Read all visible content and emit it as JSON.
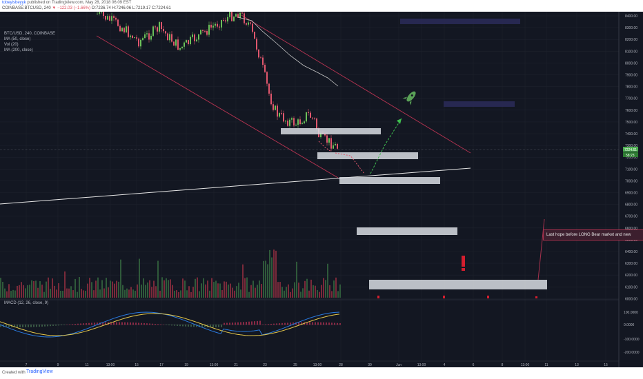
{
  "header": {
    "author": "tobeyisbeyyk",
    "publish_text": " published on TradingView.com, May 28, 2018 06:09 EST"
  },
  "symbol_line": {
    "prefix": "COINBASE:BTCUSD, 240",
    "change": " ▼ −122.03 (−1.66%) ",
    "ohlc": "O:7236.74 H:7246.06 L:7219.17 C:7224.61"
  },
  "legends": {
    "symbol": "BTC/USD, 240, COINBASE",
    "ma50": "MA (50, close)",
    "vol": "Vol (20)",
    "ma200": "MA (200, close)",
    "macd": "MACD (12, 26, close, 9)"
  },
  "price_axis": {
    "ticks": [
      "8400.00",
      "8300.00",
      "8200.00",
      "8100.00",
      "8000.00",
      "7900.00",
      "7800.00",
      "7700.00",
      "7600.00",
      "7500.00",
      "7400.00",
      "7300.00",
      "7200.00",
      "7100.00",
      "7000.00",
      "6900.00",
      "6800.00",
      "6700.00",
      "6600.00",
      "6500.00",
      "6400.00",
      "6300.00",
      "6200.00",
      "6100.00",
      "6000.00"
    ],
    "current_price": "7224.61",
    "current_tag2": "58:23"
  },
  "macd_axis": {
    "ticks": [
      "100.0000",
      "0.0000",
      "-100.0000",
      "-200.0000"
    ]
  },
  "time_axis": {
    "labels": [
      "7",
      "9",
      "11",
      "13:00",
      "15",
      "17",
      "19",
      "13:00",
      "21",
      "23",
      "25",
      "13:00",
      "28",
      "30",
      "Jun",
      "13:00",
      "4",
      "6",
      "8",
      "13:00",
      "11",
      "13",
      "15"
    ]
  },
  "annotation": {
    "last_hope": "Last hope before LONG Bear market and new"
  },
  "footer": {
    "created_with": "Created with",
    "brand": "TradingView"
  },
  "colors": {
    "background": "#131722",
    "up_candle": "#6bbf59",
    "down_candle": "#e0576d",
    "zone": "#d9dde3",
    "channel": "#b0324f",
    "support_line": "#e6e6e6",
    "projection": "#3fbf4f"
  }
}
